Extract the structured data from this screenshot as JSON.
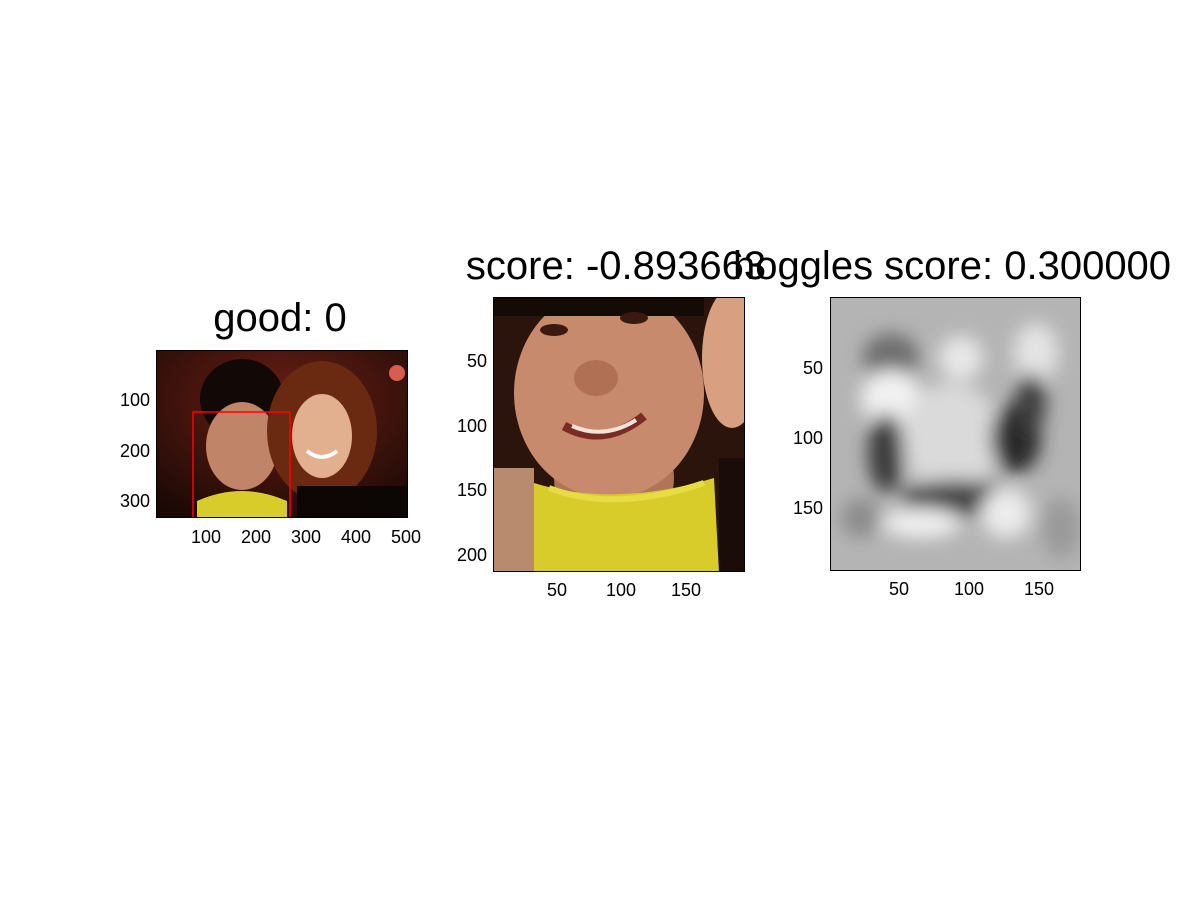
{
  "panels": [
    {
      "title": "good: 0",
      "image": "photo of two people, man in yellow shirt and woman, with red bounding box around the man's face",
      "x_ticks": [
        "100",
        "200",
        "300",
        "400",
        "500"
      ],
      "y_ticks": [
        "100",
        "200",
        "300"
      ],
      "bbox_color": "#ff0000"
    },
    {
      "title": "score: -0.893663",
      "image": "cropped face of man in yellow shirt",
      "x_ticks": [
        "50",
        "100",
        "150"
      ],
      "y_ticks": [
        "50",
        "100",
        "150",
        "200"
      ]
    },
    {
      "title": "hoggles score: 0.300000",
      "image": "grayscale blurred reconstruction of face",
      "x_ticks": [
        "50",
        "100",
        "150"
      ],
      "y_ticks": [
        "50",
        "100",
        "150"
      ]
    }
  ],
  "colors": {
    "background": "#ffffff",
    "bbox": "#ff0000",
    "shirt": "#d8cc2a"
  }
}
